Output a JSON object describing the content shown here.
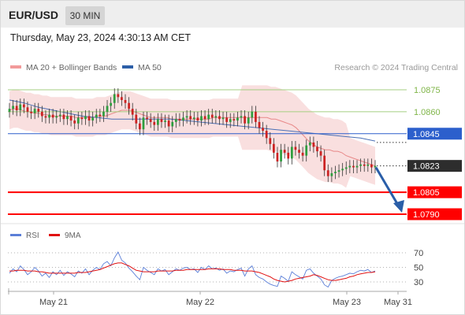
{
  "header": {
    "symbol": "EUR/USD",
    "timeframe": "30 MIN"
  },
  "timestamp": "Thursday, May 23, 2024 4:30:13 AM CET",
  "legend": {
    "ma20": "MA 20 + Bollinger Bands",
    "ma50": "MA 50",
    "credit": "Research © 2024 Trading Central"
  },
  "rsi_legend": {
    "rsi": "RSI",
    "ma9": "9MA"
  },
  "colors": {
    "up": "#2e9e3e",
    "down": "#cc2222",
    "band": "#f8dcdc",
    "ma20": "#e88888",
    "ma50": "#4a6fb5",
    "support": "#ff0000",
    "resistance_green": "#a4cf80",
    "blue_level": "#2c5fcc",
    "arrow": "#2a5ea8",
    "rsi": "#5b7fd8",
    "rsi_ma": "#e01010"
  },
  "chart_data": {
    "type": "line",
    "title": "EUR/USD 30 MIN",
    "ylim": [
      1.0784,
      1.0892
    ],
    "x_ticks": [
      "May 21",
      "May 22",
      "May 23",
      "May 31"
    ],
    "levels": [
      {
        "value": 1.0875,
        "label": "1.0875",
        "kind": "resistance"
      },
      {
        "value": 1.086,
        "label": "1.0860",
        "kind": "resistance"
      },
      {
        "value": 1.0845,
        "label": "1.0845",
        "kind": "pivot"
      },
      {
        "value": 1.0823,
        "label": "1.0823",
        "kind": "last"
      },
      {
        "value": 1.0805,
        "label": "1.0805",
        "kind": "support"
      },
      {
        "value": 1.079,
        "label": "1.0790",
        "kind": "support"
      }
    ],
    "price_series": {
      "name": "EUR/USD",
      "values": [
        1.0862,
        1.0864,
        1.0861,
        1.0865,
        1.0863,
        1.086,
        1.0859,
        1.0862,
        1.086,
        1.0857,
        1.0856,
        1.0858,
        1.0856,
        1.0857,
        1.0858,
        1.0855,
        1.0857,
        1.0854,
        1.0852,
        1.0856,
        1.0855,
        1.0857,
        1.0854,
        1.0856,
        1.0858,
        1.0857,
        1.086,
        1.0864,
        1.0866,
        1.0872,
        1.087,
        1.0868,
        1.0866,
        1.0862,
        1.0858,
        1.0852,
        1.0848,
        1.0856,
        1.0855,
        1.0853,
        1.0851,
        1.0855,
        1.0853,
        1.0854,
        1.085,
        1.0853,
        1.0855,
        1.0854,
        1.0856,
        1.0857,
        1.0855,
        1.0856,
        1.0854,
        1.0857,
        1.0855,
        1.0858,
        1.0856,
        1.0857,
        1.0855,
        1.0856,
        1.0853,
        1.0855,
        1.0854,
        1.0856,
        1.0857,
        1.0852,
        1.0856,
        1.086,
        1.0853,
        1.0849,
        1.0847,
        1.0842,
        1.0838,
        1.0832,
        1.0826,
        1.0834,
        1.0832,
        1.0828,
        1.0836,
        1.0834,
        1.0832,
        1.083,
        1.0837,
        1.0839,
        1.0836,
        1.0833,
        1.083,
        1.082,
        1.0816,
        1.0818,
        1.0819,
        1.082,
        1.0821,
        1.0822,
        1.0823,
        1.0822,
        1.0823,
        1.0824,
        1.0823,
        1.0824,
        1.0822,
        1.0823
      ]
    },
    "ma20": {
      "name": "MA 20",
      "values": [
        1.0861,
        1.0862,
        1.0862,
        1.0861,
        1.086,
        1.086,
        1.0859,
        1.0859,
        1.0858,
        1.0858,
        1.0857,
        1.0857,
        1.0857,
        1.0857,
        1.0857,
        1.0857,
        1.0856,
        1.0856,
        1.0856,
        1.0856,
        1.0856,
        1.0857,
        1.0857,
        1.0857,
        1.0858,
        1.0859,
        1.086,
        1.0861,
        1.0861,
        1.0861,
        1.086,
        1.0859,
        1.0858,
        1.0857,
        1.0856,
        1.0856,
        1.0856,
        1.0856,
        1.0856,
        1.0855,
        1.0855,
        1.0855,
        1.0855,
        1.0855,
        1.0855,
        1.0855,
        1.0855,
        1.0855,
        1.0855,
        1.0856,
        1.0856,
        1.0856,
        1.0856,
        1.0856,
        1.0856,
        1.0856,
        1.0856,
        1.0856,
        1.0856,
        1.0856,
        1.0856,
        1.0856,
        1.0856,
        1.0855,
        1.0855,
        1.0854,
        1.0853,
        1.0852,
        1.0851,
        1.0849,
        1.0846,
        1.0843,
        1.084,
        1.0838,
        1.0836,
        1.0835,
        1.0834,
        1.0834,
        1.0833,
        1.0833,
        1.0832,
        1.083,
        1.0829,
        1.0828,
        1.0827,
        1.0826,
        1.0825,
        1.0824,
        1.0823
      ]
    },
    "ma50": {
      "name": "MA 50",
      "values": [
        1.0868,
        1.0866,
        1.0863,
        1.0861,
        1.0859,
        1.0857,
        1.0856,
        1.0855,
        1.0855,
        1.0855,
        1.0855,
        1.0855,
        1.0854,
        1.0853,
        1.0852,
        1.0851,
        1.085,
        1.0849,
        1.0848,
        1.0847,
        1.0846,
        1.0845,
        1.0844,
        1.0843,
        1.0842,
        1.084
      ]
    },
    "rsi": {
      "name": "RSI",
      "ylim": [
        20,
        80
      ],
      "ticks": [
        70,
        50,
        30
      ],
      "values": [
        42,
        48,
        44,
        52,
        47,
        40,
        44,
        50,
        45,
        38,
        42,
        36,
        44,
        40,
        46,
        39,
        44,
        41,
        37,
        45,
        42,
        48,
        40,
        46,
        50,
        47,
        55,
        58,
        52,
        63,
        71,
        60,
        56,
        49,
        44,
        38,
        33,
        50,
        46,
        43,
        40,
        48,
        45,
        47,
        40,
        44,
        48,
        46,
        49,
        50,
        47,
        48,
        43,
        50,
        47,
        52,
        48,
        49,
        46,
        48,
        42,
        45,
        44,
        47,
        49,
        38,
        48,
        52,
        40,
        36,
        34,
        30,
        27,
        25,
        24,
        38,
        35,
        31,
        44,
        40,
        37,
        34,
        46,
        48,
        42,
        38,
        34,
        26,
        23,
        32,
        35,
        37,
        38,
        40,
        42,
        41,
        44,
        46,
        45,
        47,
        43,
        45
      ]
    },
    "rsi_ma": {
      "name": "9MA",
      "values": [
        45,
        45,
        46,
        46,
        46,
        45,
        45,
        45,
        44,
        44,
        43,
        42,
        42,
        42,
        42,
        42,
        42,
        42,
        42,
        43,
        43,
        43,
        44,
        45,
        46,
        47,
        49,
        51,
        53,
        55,
        56,
        56,
        54,
        52,
        49,
        46,
        45,
        44,
        44,
        44,
        44,
        45,
        45,
        45,
        45,
        45,
        46,
        46,
        46,
        47,
        47,
        47,
        47,
        47,
        47,
        48,
        48,
        48,
        48,
        47,
        47,
        47,
        46,
        46,
        46,
        45,
        45,
        45,
        44,
        43,
        41,
        39,
        37,
        34,
        32,
        31,
        30,
        31,
        32,
        34,
        35,
        36,
        37,
        38,
        40,
        39,
        37,
        35,
        33,
        32,
        32,
        33,
        34,
        35,
        37,
        38,
        40,
        41,
        42,
        43,
        43,
        44
      ]
    },
    "forecast": {
      "from": 1.0823,
      "to": 1.079
    }
  }
}
